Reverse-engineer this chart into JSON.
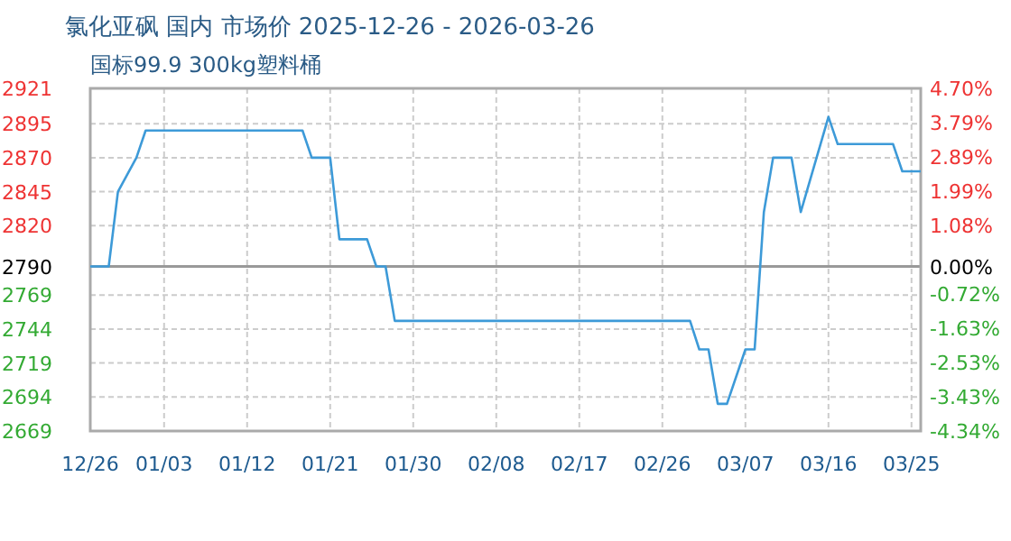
{
  "chart_data": {
    "type": "line",
    "title": "氯化亚砜 国内 市场价 2025-12-26 - 2026-03-26",
    "subtitle": "国标99.9 300kg塑料桶",
    "series": [
      {
        "color": "#3d9ad8",
        "x": [
          "2025-12-26",
          "2025-12-28",
          "2025-12-29",
          "2025-12-31",
          "2026-01-01",
          "2026-01-18",
          "2026-01-19",
          "2026-01-21",
          "2026-01-22",
          "2026-01-25",
          "2026-01-26",
          "2026-01-27",
          "2026-01-28",
          "2026-03-01",
          "2026-03-02",
          "2026-03-03",
          "2026-03-04",
          "2026-03-05",
          "2026-03-07",
          "2026-03-08",
          "2026-03-09",
          "2026-03-10",
          "2026-03-12",
          "2026-03-13",
          "2026-03-16",
          "2026-03-17",
          "2026-03-23",
          "2026-03-24",
          "2026-03-26"
        ],
        "values": [
          2790,
          2790,
          2845,
          2870,
          2890,
          2890,
          2870,
          2870,
          2810,
          2810,
          2790,
          2790,
          2750,
          2750,
          2729,
          2729,
          2689,
          2689,
          2729,
          2729,
          2830,
          2870,
          2870,
          2830,
          2900,
          2880,
          2880,
          2860,
          2860
        ]
      }
    ],
    "xlim": [
      "2025-12-26",
      "2026-03-26"
    ],
    "xticks": [
      {
        "value": "2025-12-26",
        "label": "12/26"
      },
      {
        "value": "2026-01-03",
        "label": "01/03"
      },
      {
        "value": "2026-01-12",
        "label": "01/12"
      },
      {
        "value": "2026-01-21",
        "label": "01/21"
      },
      {
        "value": "2026-01-30",
        "label": "01/30"
      },
      {
        "value": "2026-02-08",
        "label": "02/08"
      },
      {
        "value": "2026-02-17",
        "label": "02/17"
      },
      {
        "value": "2026-02-26",
        "label": "02/26"
      },
      {
        "value": "2026-03-07",
        "label": "03/07"
      },
      {
        "value": "2026-03-16",
        "label": "03/16"
      },
      {
        "value": "2026-03-25",
        "label": "03/25"
      }
    ],
    "ylim": [
      2669,
      2921
    ],
    "yticks": [
      2669,
      2694,
      2719,
      2744,
      2769,
      2790,
      2820,
      2845,
      2870,
      2895,
      2921
    ],
    "y2lim": [
      -4.34,
      4.7
    ],
    "y2ticks": [
      {
        "value": -4.34,
        "label": "-4.34%"
      },
      {
        "value": -3.43,
        "label": "-3.43%"
      },
      {
        "value": -2.53,
        "label": "-2.53%"
      },
      {
        "value": -1.63,
        "label": "-1.63%"
      },
      {
        "value": -0.72,
        "label": "-0.72%"
      },
      {
        "value": 0,
        "label": "0.00%"
      },
      {
        "value": 1.08,
        "label": "1.08%"
      },
      {
        "value": 1.99,
        "label": "1.99%"
      },
      {
        "value": 2.89,
        "label": "2.89%"
      },
      {
        "value": 3.79,
        "label": "3.79%"
      },
      {
        "value": 4.7,
        "label": "4.70%"
      }
    ],
    "ref_lines": [
      {
        "axis": "y",
        "value": 2790,
        "color": "#999999"
      }
    ],
    "grid": true
  }
}
